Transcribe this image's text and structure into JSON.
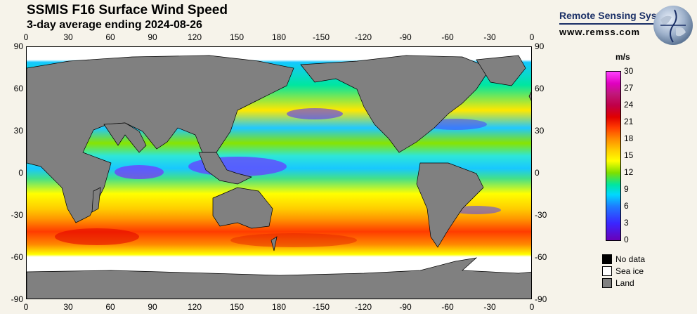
{
  "title": "SSMIS F16 Surface Wind Speed",
  "subtitle": "3-day average ending 2024-08-26",
  "brand": {
    "name": "Remote Sensing Systems",
    "url": "www.remss.com"
  },
  "axes": {
    "lon_top": [
      "0",
      "30",
      "60",
      "90",
      "120",
      "150",
      "180",
      "-150",
      "-120",
      "-90",
      "-60",
      "-30",
      "0"
    ],
    "lon_bottom": [
      "0",
      "30",
      "60",
      "90",
      "120",
      "150",
      "180",
      "-150",
      "-120",
      "-90",
      "-60",
      "-30",
      "0"
    ],
    "lat_left": [
      "90",
      "60",
      "30",
      "0",
      "-30",
      "-60",
      "-90"
    ],
    "lat_right": [
      "90",
      "60",
      "30",
      "0",
      "-30",
      "-60",
      "-90"
    ]
  },
  "colorbar": {
    "unit": "m/s",
    "ticks": [
      "30",
      "27",
      "24",
      "21",
      "18",
      "15",
      "12",
      "9",
      "6",
      "3",
      "0"
    ],
    "range": [
      0,
      30
    ]
  },
  "legend": [
    {
      "label": "No data",
      "color": "#000000"
    },
    {
      "label": "Sea ice",
      "color": "#ffffff"
    },
    {
      "label": "Land",
      "color": "#808080"
    }
  ],
  "colors": {
    "land": "#808080",
    "sea_ice": "#ffffff",
    "brand": "#1a2f66"
  }
}
